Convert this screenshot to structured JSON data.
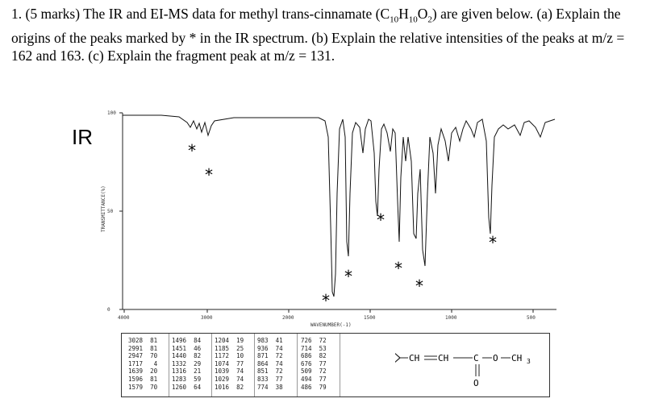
{
  "question": {
    "lead": "1. (5 marks) The IR and EI-MS data for methyl trans-cinnamate (C",
    "sub1": "10",
    "mid1": "H",
    "sub2": "10",
    "mid2": "O",
    "sub3": "2",
    "tail": ") are given below. (a) Explain the origins of the peaks marked by * in the IR spectrum. (b) Explain the relative intensities of the peaks at m/z = 162 and 163. (c) Explain the fragment peak at m/z = 131."
  },
  "ir_label": "IR",
  "chart_data": {
    "type": "line",
    "title": "",
    "xlabel": "WAVENUMBER(-1)",
    "ylabel": "TRANSMITTANCE(%)",
    "x_ticks": [
      "4000",
      "3000",
      "2000",
      "1500",
      "1000",
      "500"
    ],
    "y_ticks": [
      "100",
      "50",
      "0"
    ],
    "xlim": [
      4000,
      400
    ],
    "ylim": [
      0,
      100
    ],
    "marked_peaks": [
      "*",
      "*",
      "*",
      "*",
      "*",
      "*",
      "*",
      "*"
    ]
  },
  "peak_table": {
    "columns": [
      "3028  81\n2991  81\n2947  70\n1717   4\n1639  20\n1596  81\n1579  70",
      "1496  84\n1451  46\n1440  82\n1332  29\n1316  21\n1283  59\n1260  64",
      "1204  19\n1185  25\n1172  10\n1074  77\n1039  74\n1029  74\n1016  82",
      "983  41\n936  74\n871  72\n864  74\n851  72\n833  77\n774  38",
      "726  72\n714  53\n686  82\n676  77\n509  72\n494  77\n486  79"
    ]
  },
  "structure": {
    "chain": "CH",
    "chain2": "CH",
    "carbonyl_c": "C",
    "oxygen": "O",
    "methyl": "CH",
    "methyl_sub": "3",
    "carbonyl_o": "O"
  }
}
